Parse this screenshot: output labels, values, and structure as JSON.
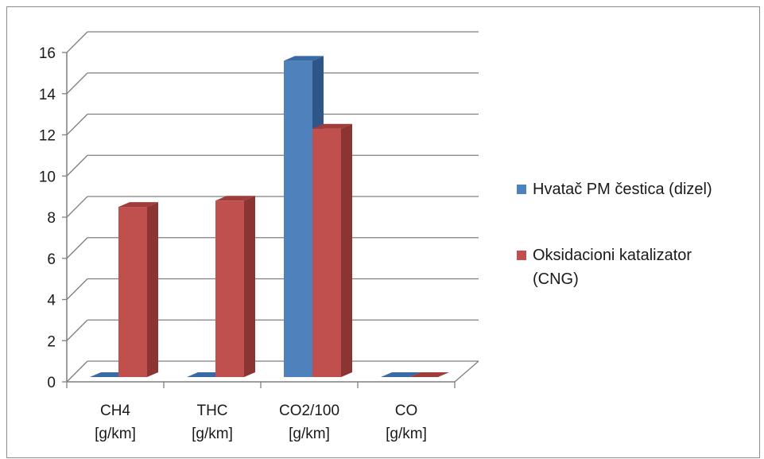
{
  "chart_data": {
    "type": "bar",
    "variant": "3d-clustered-column",
    "categories": [
      [
        "CH4",
        "[g/km]"
      ],
      [
        "THC",
        "[g/km]"
      ],
      [
        "CO2/100",
        "[g/km]"
      ],
      [
        "CO",
        "[g/km]"
      ]
    ],
    "series": [
      {
        "name": "Hvatač PM čestica (dizel)",
        "values": [
          0.0,
          0.0,
          15.6,
          0.0
        ]
      },
      {
        "name": "Oksidacioni katalizator (CNG)",
        "values": [
          8.5,
          8.8,
          12.3,
          0.0
        ]
      }
    ],
    "ylim": [
      0,
      16
    ],
    "yticks": [
      "0",
      "2",
      "4",
      "6",
      "8",
      "10",
      "12",
      "14",
      "16"
    ],
    "title": "",
    "xlabel": "",
    "ylabel": "",
    "grid": true,
    "legend_position": "right",
    "colors": {
      "series": [
        "#4f81bd",
        "#c0504d"
      ],
      "series_side": [
        "#2f5688",
        "#8b3431"
      ],
      "series_top": [
        "#3a6aa5",
        "#a03c39"
      ],
      "grid": "#7f7f7f"
    }
  },
  "legend": {
    "items": [
      {
        "lines": [
          "Hvatač PM čestica (dizel)"
        ]
      },
      {
        "lines": [
          "Oksidacioni katalizator",
          "(CNG)"
        ]
      }
    ]
  }
}
